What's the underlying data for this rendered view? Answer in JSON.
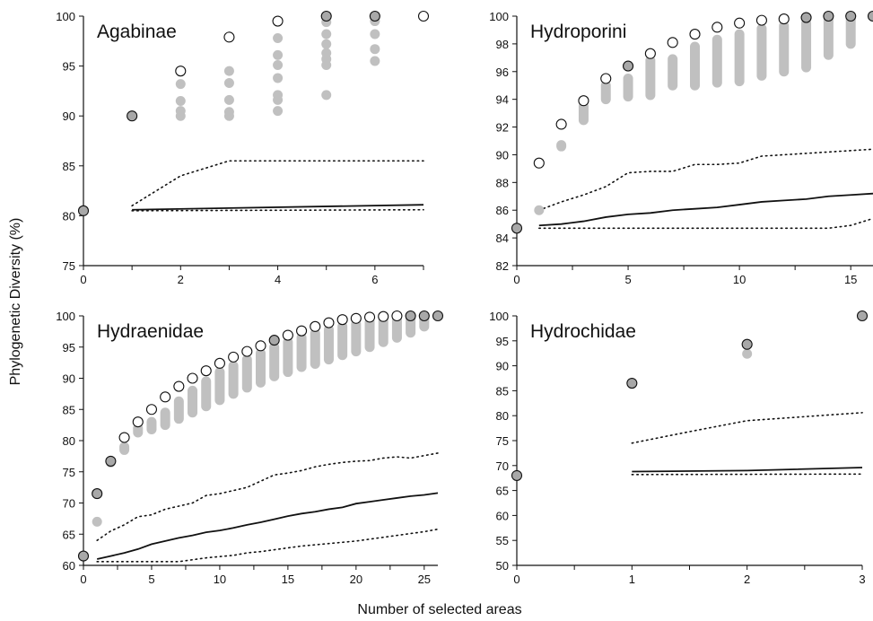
{
  "figure": {
    "xlabel": "Number of selected areas",
    "ylabel": "Phylogenetic Diversity (%)"
  },
  "chart_data": [
    {
      "type": "scatter",
      "title": "Agabinae",
      "xlim": [
        0,
        7
      ],
      "ylim": [
        75,
        100
      ],
      "x_ticks": [
        0,
        2,
        4,
        6
      ],
      "y_ticks": [
        75,
        80,
        85,
        90,
        95,
        100
      ],
      "grid": false,
      "reference_point": {
        "x": 0,
        "y": 80.5
      },
      "optimal_points": [
        {
          "x": 1,
          "y": 90
        },
        {
          "x": 2,
          "y": 94.5
        },
        {
          "x": 3,
          "y": 97.9
        },
        {
          "x": 4,
          "y": 99.5
        },
        {
          "x": 5,
          "y": 100
        },
        {
          "x": 6,
          "y": 100
        },
        {
          "x": 7,
          "y": 100
        }
      ],
      "optimal_filled": [
        1,
        5,
        6
      ],
      "alternative_points": [
        {
          "x": 2,
          "values": [
            93.2,
            91.5,
            90.5,
            90
          ]
        },
        {
          "x": 3,
          "values": [
            94.5,
            93.3,
            91.6,
            90.4,
            90
          ]
        },
        {
          "x": 4,
          "values": [
            97.8,
            96.1,
            95.1,
            93.8,
            92.1,
            91.6,
            90.5
          ]
        },
        {
          "x": 5,
          "values": [
            99.4,
            98.2,
            97.2,
            96.3,
            95.7,
            95.1,
            92.1
          ]
        },
        {
          "x": 6,
          "values": [
            99.5,
            98.2,
            96.7,
            95.5
          ]
        }
      ],
      "random_mean": {
        "x": [
          1,
          7
        ],
        "y": [
          80.6,
          81.1
        ]
      },
      "random_upper": {
        "x": [
          1,
          2,
          3,
          4,
          5,
          6,
          7
        ],
        "y": [
          81,
          84,
          85.5,
          85.5,
          85.5,
          85.5,
          85.5
        ]
      },
      "random_lower": {
        "x": [
          1,
          7
        ],
        "y": [
          80.5,
          80.6
        ]
      }
    },
    {
      "type": "scatter",
      "title": "Hydroporini",
      "xlim": [
        0,
        16
      ],
      "ylim": [
        82,
        100
      ],
      "x_ticks": [
        0,
        5,
        10,
        15
      ],
      "y_ticks": [
        82,
        84,
        86,
        88,
        90,
        92,
        94,
        96,
        98,
        100
      ],
      "grid": false,
      "reference_point": {
        "x": 0,
        "y": 84.7
      },
      "optimal_points": [
        {
          "x": 1,
          "y": 89.4
        },
        {
          "x": 2,
          "y": 92.2
        },
        {
          "x": 3,
          "y": 93.9
        },
        {
          "x": 4,
          "y": 95.5
        },
        {
          "x": 5,
          "y": 96.4
        },
        {
          "x": 6,
          "y": 97.3
        },
        {
          "x": 7,
          "y": 98.1
        },
        {
          "x": 8,
          "y": 98.7
        },
        {
          "x": 9,
          "y": 99.2
        },
        {
          "x": 10,
          "y": 99.5
        },
        {
          "x": 11,
          "y": 99.7
        },
        {
          "x": 12,
          "y": 99.8
        },
        {
          "x": 13,
          "y": 99.9
        },
        {
          "x": 14,
          "y": 100
        },
        {
          "x": 15,
          "y": 100
        },
        {
          "x": 16,
          "y": 100
        }
      ],
      "optimal_filled": [
        5,
        13,
        14,
        15,
        16
      ],
      "alternative_ranges": [
        {
          "x": 1,
          "min": 86,
          "max": 86
        },
        {
          "x": 2,
          "min": 90.6,
          "max": 90.7
        },
        {
          "x": 3,
          "min": 92.5,
          "max": 93.5
        },
        {
          "x": 4,
          "min": 94,
          "max": 95
        },
        {
          "x": 5,
          "min": 94.2,
          "max": 95.5
        },
        {
          "x": 6,
          "min": 94.3,
          "max": 96.8
        },
        {
          "x": 7,
          "min": 95,
          "max": 96.9
        },
        {
          "x": 8,
          "min": 95,
          "max": 97.8
        },
        {
          "x": 9,
          "min": 95.2,
          "max": 98.3
        },
        {
          "x": 10,
          "min": 95.3,
          "max": 98.7
        },
        {
          "x": 11,
          "min": 95.7,
          "max": 99.1
        },
        {
          "x": 12,
          "min": 96,
          "max": 99.3
        },
        {
          "x": 13,
          "min": 96.3,
          "max": 99.5
        },
        {
          "x": 14,
          "min": 97.2,
          "max": 99.7
        },
        {
          "x": 15,
          "min": 98,
          "max": 99.8
        }
      ],
      "random_mean": {
        "x": [
          1,
          2,
          3,
          4,
          5,
          6,
          7,
          8,
          9,
          10,
          11,
          12,
          13,
          14,
          15,
          16
        ],
        "y": [
          84.9,
          85,
          85.2,
          85.5,
          85.7,
          85.8,
          86,
          86.1,
          86.2,
          86.4,
          86.6,
          86.7,
          86.8,
          87,
          87.1,
          87.2
        ]
      },
      "random_upper": {
        "x": [
          1,
          2,
          3,
          4,
          5,
          6,
          7,
          8,
          9,
          10,
          11,
          12,
          13,
          14,
          15,
          16
        ],
        "y": [
          86,
          86.6,
          87.1,
          87.7,
          88.7,
          88.8,
          88.8,
          89.3,
          89.3,
          89.4,
          89.9,
          90,
          90.1,
          90.2,
          90.3,
          90.4
        ]
      },
      "random_lower": {
        "x": [
          1,
          14,
          15,
          16
        ],
        "y": [
          84.7,
          84.7,
          84.9,
          85.4
        ]
      }
    },
    {
      "type": "scatter",
      "title": "Hydraenidae",
      "xlim": [
        0,
        26
      ],
      "ylim": [
        60,
        100
      ],
      "x_ticks": [
        0,
        5,
        10,
        15,
        20,
        25
      ],
      "y_ticks": [
        60,
        65,
        70,
        75,
        80,
        85,
        90,
        95,
        100
      ],
      "grid": false,
      "reference_point": {
        "x": 0,
        "y": 61.5
      },
      "optimal_points": [
        {
          "x": 1,
          "y": 71.5
        },
        {
          "x": 2,
          "y": 76.7
        },
        {
          "x": 3,
          "y": 80.5
        },
        {
          "x": 4,
          "y": 83
        },
        {
          "x": 5,
          "y": 85
        },
        {
          "x": 6,
          "y": 87
        },
        {
          "x": 7,
          "y": 88.7
        },
        {
          "x": 8,
          "y": 90
        },
        {
          "x": 9,
          "y": 91.2
        },
        {
          "x": 10,
          "y": 92.4
        },
        {
          "x": 11,
          "y": 93.4
        },
        {
          "x": 12,
          "y": 94.3
        },
        {
          "x": 13,
          "y": 95.2
        },
        {
          "x": 14,
          "y": 96.1
        },
        {
          "x": 15,
          "y": 96.9
        },
        {
          "x": 16,
          "y": 97.6
        },
        {
          "x": 17,
          "y": 98.3
        },
        {
          "x": 18,
          "y": 98.9
        },
        {
          "x": 19,
          "y": 99.4
        },
        {
          "x": 20,
          "y": 99.6
        },
        {
          "x": 21,
          "y": 99.8
        },
        {
          "x": 22,
          "y": 99.9
        },
        {
          "x": 23,
          "y": 100
        },
        {
          "x": 24,
          "y": 100
        },
        {
          "x": 25,
          "y": 100
        },
        {
          "x": 26,
          "y": 100
        }
      ],
      "optimal_filled": [
        1,
        2,
        14,
        24,
        25,
        26
      ],
      "alternative_ranges": [
        {
          "x": 1,
          "min": 67,
          "max": 67
        },
        {
          "x": 2,
          "min": 76.5,
          "max": 76.8
        },
        {
          "x": 3,
          "min": 78.5,
          "max": 79
        },
        {
          "x": 4,
          "min": 81.3,
          "max": 82
        },
        {
          "x": 5,
          "min": 81.8,
          "max": 83
        },
        {
          "x": 6,
          "min": 82.5,
          "max": 84.5
        },
        {
          "x": 7,
          "min": 83.5,
          "max": 86.3
        },
        {
          "x": 8,
          "min": 84.5,
          "max": 88
        },
        {
          "x": 9,
          "min": 85.5,
          "max": 89.5
        },
        {
          "x": 10,
          "min": 86.5,
          "max": 91
        },
        {
          "x": 11,
          "min": 87.5,
          "max": 92
        },
        {
          "x": 12,
          "min": 88.5,
          "max": 93
        },
        {
          "x": 13,
          "min": 89.3,
          "max": 94
        },
        {
          "x": 14,
          "min": 90.3,
          "max": 95
        },
        {
          "x": 15,
          "min": 91,
          "max": 95.8
        },
        {
          "x": 16,
          "min": 91.8,
          "max": 96.5
        },
        {
          "x": 17,
          "min": 92.3,
          "max": 97.2
        },
        {
          "x": 18,
          "min": 93,
          "max": 97.8
        },
        {
          "x": 19,
          "min": 93.7,
          "max": 98.3
        },
        {
          "x": 20,
          "min": 94.3,
          "max": 98.7
        },
        {
          "x": 21,
          "min": 95,
          "max": 99
        },
        {
          "x": 22,
          "min": 95.8,
          "max": 99.2
        },
        {
          "x": 23,
          "min": 96.5,
          "max": 99.4
        },
        {
          "x": 24,
          "min": 97.3,
          "max": 99.6
        },
        {
          "x": 25,
          "min": 98.3,
          "max": 99.8
        }
      ],
      "random_mean": {
        "x": [
          1,
          2,
          3,
          4,
          5,
          6,
          7,
          8,
          9,
          10,
          11,
          12,
          13,
          14,
          15,
          16,
          17,
          18,
          19,
          20,
          21,
          22,
          23,
          24,
          25,
          26
        ],
        "y": [
          61,
          61.5,
          62,
          62.6,
          63.4,
          63.9,
          64.4,
          64.8,
          65.3,
          65.6,
          66,
          66.5,
          66.9,
          67.4,
          67.9,
          68.3,
          68.6,
          69,
          69.3,
          69.9,
          70.2,
          70.5,
          70.8,
          71.1,
          71.3,
          71.6
        ]
      },
      "random_upper": {
        "x": [
          1,
          2,
          3,
          4,
          5,
          6,
          7,
          8,
          9,
          10,
          11,
          12,
          13,
          14,
          15,
          16,
          17,
          18,
          19,
          20,
          21,
          22,
          23,
          24,
          25,
          26
        ],
        "y": [
          64,
          65.5,
          66.5,
          67.8,
          68.1,
          69,
          69.5,
          70,
          71.2,
          71.5,
          72,
          72.5,
          73.5,
          74.5,
          74.8,
          75.2,
          75.8,
          76.2,
          76.5,
          76.7,
          76.8,
          77.2,
          77.4,
          77.2,
          77.6,
          78
        ]
      },
      "random_lower": {
        "x": [
          1,
          7,
          8,
          9,
          10,
          11,
          12,
          13,
          14,
          15,
          16,
          17,
          18,
          19,
          20,
          21,
          22,
          23,
          24,
          25,
          26
        ],
        "y": [
          60.6,
          60.6,
          60.9,
          61.2,
          61.4,
          61.6,
          62,
          62.2,
          62.5,
          62.8,
          63.1,
          63.3,
          63.5,
          63.7,
          63.9,
          64.2,
          64.5,
          64.8,
          65.1,
          65.4,
          65.8
        ]
      }
    },
    {
      "type": "scatter",
      "title": "Hydrochidae",
      "xlim": [
        0,
        3
      ],
      "ylim": [
        50,
        100
      ],
      "x_ticks": [
        0,
        1,
        2,
        3
      ],
      "y_ticks": [
        50,
        55,
        60,
        65,
        70,
        75,
        80,
        85,
        90,
        95,
        100
      ],
      "grid": false,
      "reference_point": {
        "x": 0,
        "y": 68
      },
      "optimal_points": [
        {
          "x": 1,
          "y": 86.5
        },
        {
          "x": 2,
          "y": 94.3
        },
        {
          "x": 3,
          "y": 100
        }
      ],
      "optimal_filled": [
        1,
        2,
        3
      ],
      "alternative_points": [
        {
          "x": 2,
          "values": [
            92.4
          ]
        }
      ],
      "random_mean": {
        "x": [
          1,
          2,
          3
        ],
        "y": [
          68.8,
          69,
          69.6
        ]
      },
      "random_upper": {
        "x": [
          1,
          1.5,
          2,
          2.5,
          3
        ],
        "y": [
          74.5,
          76.8,
          79,
          79.8,
          80.6
        ]
      },
      "random_lower": {
        "x": [
          1,
          3
        ],
        "y": [
          68.2,
          68.3
        ]
      }
    }
  ]
}
